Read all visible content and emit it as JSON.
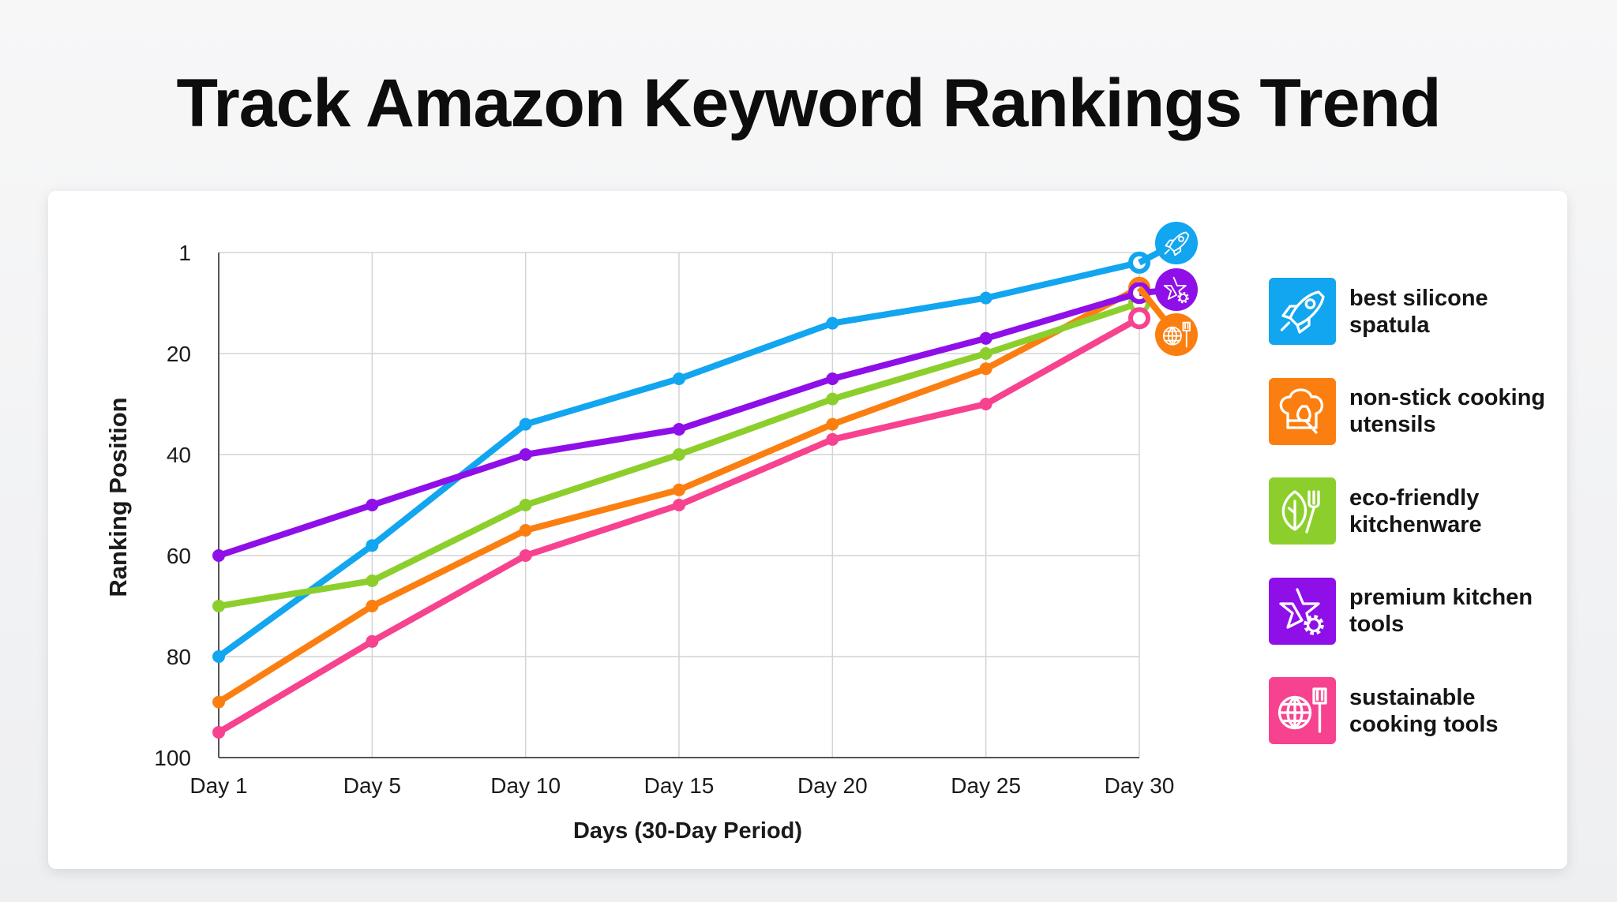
{
  "title": "Track Amazon Keyword Rankings Trend",
  "chart_data": {
    "type": "line",
    "title": "Track Amazon Keyword Rankings Trend",
    "xlabel": "Days (30-Day Period)",
    "ylabel": "Ranking Position",
    "categories": [
      "Day 1",
      "Day 5",
      "Day 10",
      "Day 15",
      "Day 20",
      "Day 25",
      "Day 30"
    ],
    "y_ticks": [
      "1",
      "20",
      "40",
      "60",
      "80",
      "100"
    ],
    "y_axis_inverted": true,
    "ylim": [
      1,
      100
    ],
    "grid": true,
    "legend_placement": "right",
    "series": [
      {
        "name": "best silicone spatula",
        "color": "#12a5f0",
        "icon": "rocket-icon",
        "values": [
          80,
          58,
          34,
          25,
          14,
          9,
          2
        ]
      },
      {
        "name": "non-stick cooking utensils",
        "color": "#fb7f10",
        "icon": "chef-hat-whisk-icon",
        "values": [
          89,
          70,
          55,
          47,
          34,
          23,
          7
        ]
      },
      {
        "name": "eco-friendly kitchenware",
        "color": "#8ccf2c",
        "icon": "leaf-fork-icon",
        "values": [
          70,
          65,
          50,
          40,
          29,
          20,
          10
        ]
      },
      {
        "name": "premium kitchen tools",
        "color": "#8f0fe8",
        "icon": "star-gear-icon",
        "values": [
          60,
          50,
          40,
          35,
          25,
          17,
          8
        ]
      },
      {
        "name": "sustainable cooking tools",
        "color": "#f7428f",
        "icon": "globe-spatula-icon",
        "values": [
          95,
          77,
          60,
          50,
          37,
          30,
          13
        ]
      }
    ],
    "end_badges": [
      {
        "color": "#12a5f0",
        "icon": "rocket-icon"
      },
      {
        "color": "#8f0fe8",
        "icon": "star-gear-icon"
      },
      {
        "color": "#fb7f10",
        "icon": "globe-spatula-icon"
      }
    ]
  }
}
